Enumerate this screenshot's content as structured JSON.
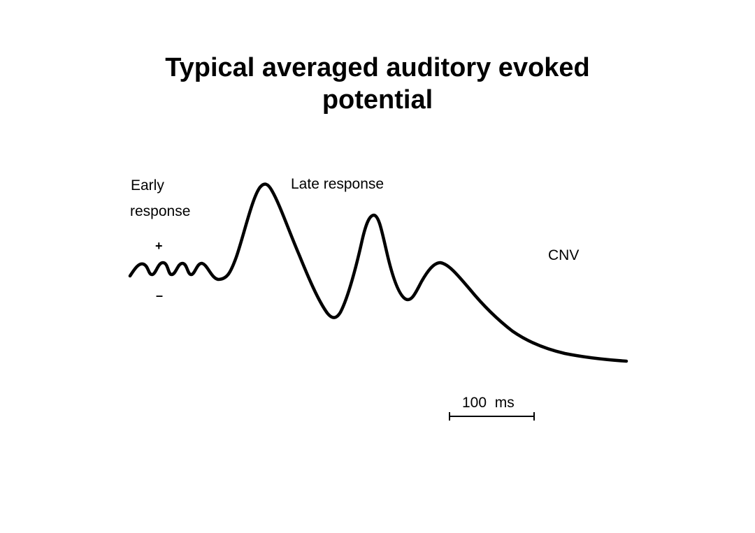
{
  "title": {
    "line1": "Typical averaged auditory evoked",
    "line2": "potential"
  },
  "labels": {
    "early_line1": "Early",
    "early_line2": "response",
    "late": "Late response",
    "cnv": "CNV",
    "plus": "+",
    "minus": "–",
    "scale": "100  ms"
  },
  "colors": {
    "ink": "#000000",
    "background": "#ffffff"
  }
}
